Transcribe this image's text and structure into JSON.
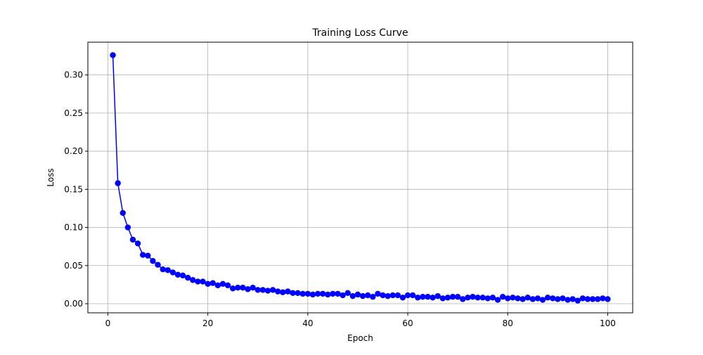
{
  "chart_data": {
    "type": "line",
    "title": "Training Loss Curve",
    "xlabel": "Epoch",
    "ylabel": "Loss",
    "xlim": [
      -4,
      105
    ],
    "ylim": [
      -0.012,
      0.343
    ],
    "xticks": [
      0,
      20,
      40,
      60,
      80,
      100
    ],
    "xtick_labels": [
      "0",
      "20",
      "40",
      "60",
      "80",
      "100"
    ],
    "yticks": [
      0.0,
      0.05,
      0.1,
      0.15,
      0.2,
      0.25,
      0.3
    ],
    "ytick_labels": [
      "0.00",
      "0.05",
      "0.10",
      "0.15",
      "0.20",
      "0.25",
      "0.30"
    ],
    "grid": true,
    "series": [
      {
        "color": "#0000ff",
        "marker": "circle",
        "x": [
          1,
          2,
          3,
          4,
          5,
          6,
          7,
          8,
          9,
          10,
          11,
          12,
          13,
          14,
          15,
          16,
          17,
          18,
          19,
          20,
          21,
          22,
          23,
          24,
          25,
          26,
          27,
          28,
          29,
          30,
          31,
          32,
          33,
          34,
          35,
          36,
          37,
          38,
          39,
          40,
          41,
          42,
          43,
          44,
          45,
          46,
          47,
          48,
          49,
          50,
          51,
          52,
          53,
          54,
          55,
          56,
          57,
          58,
          59,
          60,
          61,
          62,
          63,
          64,
          65,
          66,
          67,
          68,
          69,
          70,
          71,
          72,
          73,
          74,
          75,
          76,
          77,
          78,
          79,
          80,
          81,
          82,
          83,
          84,
          85,
          86,
          87,
          88,
          89,
          90,
          91,
          92,
          93,
          94,
          95,
          96,
          97,
          98,
          99,
          100
        ],
        "y": [
          0.326,
          0.158,
          0.119,
          0.1,
          0.084,
          0.079,
          0.064,
          0.063,
          0.056,
          0.051,
          0.045,
          0.044,
          0.041,
          0.038,
          0.037,
          0.034,
          0.031,
          0.029,
          0.029,
          0.026,
          0.027,
          0.024,
          0.026,
          0.024,
          0.02,
          0.021,
          0.021,
          0.019,
          0.021,
          0.018,
          0.018,
          0.017,
          0.018,
          0.016,
          0.015,
          0.016,
          0.014,
          0.014,
          0.013,
          0.013,
          0.012,
          0.013,
          0.013,
          0.012,
          0.013,
          0.013,
          0.011,
          0.014,
          0.01,
          0.012,
          0.01,
          0.011,
          0.009,
          0.013,
          0.011,
          0.01,
          0.011,
          0.011,
          0.008,
          0.011,
          0.011,
          0.008,
          0.009,
          0.009,
          0.008,
          0.01,
          0.007,
          0.008,
          0.009,
          0.009,
          0.006,
          0.008,
          0.009,
          0.008,
          0.008,
          0.007,
          0.008,
          0.005,
          0.009,
          0.007,
          0.008,
          0.007,
          0.006,
          0.008,
          0.006,
          0.007,
          0.005,
          0.008,
          0.007,
          0.006,
          0.007,
          0.005,
          0.006,
          0.004,
          0.007,
          0.006,
          0.006,
          0.006,
          0.007,
          0.006
        ]
      }
    ]
  }
}
